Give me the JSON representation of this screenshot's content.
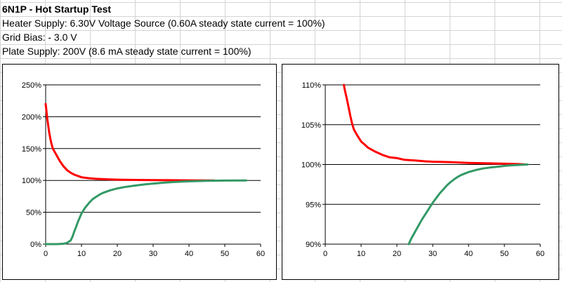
{
  "sheet": {
    "rows": [
      "6N1P - Hot Startup Test",
      "Heater Supply: 6.30V Voltage Source (0.60A steady state current = 100%)",
      "Grid Bias: - 3.0 V",
      "Plate Supply: 200V (8.6 mA steady state current = 100%)"
    ]
  },
  "colors": {
    "heater": "#ff0000",
    "plate": "#339966",
    "grid": "#000000"
  },
  "chart_data": [
    {
      "type": "line",
      "title": "",
      "xlabel": "",
      "ylabel": "",
      "xlim": [
        0,
        60
      ],
      "ylim": [
        0,
        250
      ],
      "xticks": [
        0,
        10,
        20,
        30,
        40,
        50,
        60
      ],
      "yticks": [
        0,
        50,
        100,
        150,
        200,
        250
      ],
      "ytick_labels": [
        "0%",
        "50%",
        "100%",
        "150%",
        "200%",
        "250%"
      ],
      "grid": "horizontal",
      "legend": "none",
      "series": [
        {
          "color": "#ff0000",
          "x": [
            0,
            0.5,
            1,
            1.5,
            2,
            3,
            4,
            5,
            6,
            7,
            8,
            9,
            10,
            12,
            14,
            16,
            20,
            25,
            30,
            35,
            40,
            47
          ],
          "y": [
            220,
            195,
            175,
            160,
            150,
            140,
            130,
            122,
            116,
            112,
            109,
            107,
            105,
            103.5,
            102.5,
            102,
            101.2,
            100.8,
            100.5,
            100.3,
            100.1,
            100
          ]
        },
        {
          "color": "#339966",
          "x": [
            0,
            3,
            5,
            6,
            7,
            7.5,
            8,
            8.5,
            9,
            10,
            11,
            12,
            13,
            14,
            15,
            16,
            18,
            20,
            22,
            25,
            28,
            30,
            33,
            36,
            40,
            45,
            50,
            56
          ],
          "y": [
            0,
            0,
            0.5,
            2,
            6,
            12,
            20,
            27,
            35,
            48,
            57,
            64,
            70,
            74,
            77.5,
            80.5,
            84.5,
            87.5,
            89.5,
            92,
            94,
            95,
            96.5,
            97.6,
            98.6,
            99.4,
            99.8,
            100
          ]
        }
      ]
    },
    {
      "type": "line",
      "title": "",
      "xlabel": "",
      "ylabel": "",
      "xlim": [
        0,
        60
      ],
      "ylim": [
        90,
        110
      ],
      "xticks": [
        0,
        10,
        20,
        30,
        40,
        50,
        60
      ],
      "yticks": [
        90,
        95,
        100,
        105,
        110
      ],
      "ytick_labels": [
        "90%",
        "95%",
        "100%",
        "105%",
        "110%"
      ],
      "grid": "horizontal",
      "legend": "none",
      "series": [
        {
          "color": "#ff0000",
          "x": [
            5.2,
            5.5,
            6,
            6.5,
            7,
            7.5,
            8,
            9,
            10,
            11,
            12,
            14,
            16,
            18,
            20,
            22,
            25,
            28,
            30,
            35,
            40,
            45,
            50,
            54,
            56
          ],
          "y": [
            110,
            109.3,
            108.3,
            107.2,
            106.1,
            105.1,
            104.4,
            103.6,
            102.9,
            102.5,
            102.1,
            101.6,
            101.2,
            100.9,
            100.8,
            100.6,
            100.5,
            100.4,
            100.35,
            100.3,
            100.2,
            100.15,
            100.1,
            100.05,
            100
          ]
        },
        {
          "color": "#339966",
          "x": [
            23.3,
            24,
            25,
            26,
            27,
            28,
            29,
            30,
            31,
            32,
            33,
            34,
            35,
            36,
            37,
            38,
            40,
            42,
            44,
            46,
            48,
            50,
            52,
            54,
            56.5
          ],
          "y": [
            90,
            90.7,
            91.5,
            92.3,
            93.1,
            93.8,
            94.5,
            95.2,
            95.8,
            96.4,
            96.9,
            97.4,
            97.8,
            98.15,
            98.45,
            98.7,
            99.05,
            99.3,
            99.5,
            99.62,
            99.72,
            99.82,
            99.9,
            99.95,
            100
          ]
        }
      ]
    }
  ]
}
